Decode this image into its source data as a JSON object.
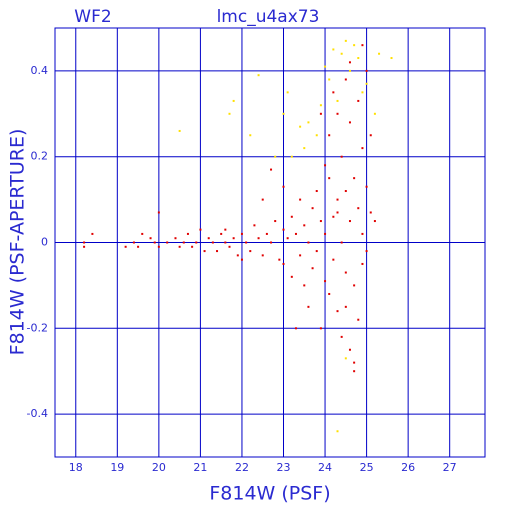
{
  "chart_data": {
    "type": "scatter",
    "title": "lmc_u4ax73",
    "subtitle": "WF2",
    "x_label": "F814W (PSF)",
    "y_label": "F814W (PSF-APERTURE)",
    "xlim": [
      17.5,
      27.85
    ],
    "ylim": [
      -0.5,
      0.5
    ],
    "xticks": [
      18,
      19,
      20,
      21,
      22,
      23,
      24,
      25,
      26,
      27
    ],
    "yticks": [
      -0.4,
      -0.2,
      0,
      0.2,
      0.4
    ],
    "grid": true,
    "axis_color": "#0000c8",
    "series": [
      {
        "color": "#e00000",
        "x": [
          18.2,
          18.4,
          18.2,
          19.2,
          19.4,
          19.5,
          19.6,
          19.8,
          19.9,
          20.0,
          20.0,
          20.2,
          20.4,
          20.5,
          20.6,
          20.7,
          20.8,
          20.9,
          21.0,
          21.1,
          21.2,
          21.3,
          21.4,
          21.5,
          21.6,
          21.7,
          21.8,
          21.9,
          22.0,
          22.1,
          22.2,
          22.3,
          22.4,
          22.5,
          22.6,
          22.7,
          22.8,
          22.9,
          23.0,
          23.0,
          23.1,
          23.2,
          23.2,
          23.3,
          23.4,
          23.4,
          23.5,
          23.5,
          23.6,
          23.6,
          23.7,
          23.7,
          23.8,
          23.8,
          23.9,
          23.9,
          24.0,
          24.0,
          24.0,
          24.1,
          24.1,
          24.1,
          24.2,
          24.2,
          24.3,
          24.3,
          24.3,
          24.4,
          24.4,
          24.4,
          24.5,
          24.5,
          24.5,
          24.6,
          24.6,
          24.6,
          24.7,
          24.7,
          24.7,
          24.8,
          24.8,
          24.8,
          24.9,
          24.9,
          24.9,
          25.0,
          25.0,
          25.0,
          25.1,
          25.1,
          25.2,
          24.2,
          24.6,
          24.9,
          23.3,
          22.5,
          22.7,
          21.6,
          22.0,
          23.0,
          24.5,
          24.7,
          24.3,
          23.9
        ],
        "y": [
          0.0,
          0.02,
          -0.01,
          -0.01,
          0.0,
          -0.01,
          0.02,
          0.01,
          0.0,
          0.07,
          -0.01,
          0.0,
          0.01,
          -0.01,
          0.0,
          0.02,
          -0.01,
          0.0,
          0.03,
          -0.02,
          0.01,
          0.0,
          -0.02,
          0.02,
          0.0,
          -0.01,
          0.01,
          -0.03,
          0.02,
          0.0,
          -0.02,
          0.04,
          0.01,
          -0.03,
          0.02,
          0.0,
          0.05,
          -0.04,
          0.03,
          -0.05,
          0.01,
          0.06,
          -0.08,
          0.02,
          -0.03,
          0.1,
          -0.1,
          0.04,
          0.0,
          -0.15,
          0.08,
          -0.06,
          0.12,
          -0.02,
          0.05,
          -0.2,
          0.18,
          -0.09,
          0.02,
          -0.12,
          0.15,
          0.25,
          -0.04,
          0.06,
          0.3,
          -0.16,
          0.1,
          0.0,
          -0.22,
          0.2,
          0.12,
          -0.07,
          0.38,
          -0.25,
          0.05,
          0.28,
          -0.3,
          0.15,
          -0.1,
          0.08,
          0.33,
          -0.18,
          0.22,
          -0.05,
          0.02,
          0.4,
          0.13,
          -0.02,
          0.25,
          0.07,
          0.05,
          0.35,
          0.42,
          0.46,
          -0.2,
          0.1,
          0.17,
          0.03,
          -0.04,
          0.13,
          -0.15,
          -0.28,
          0.07,
          0.3
        ]
      },
      {
        "color": "#ffe000",
        "x": [
          20.5,
          21.7,
          21.8,
          22.4,
          22.2,
          23.0,
          23.2,
          23.5,
          23.6,
          23.8,
          23.9,
          24.0,
          24.1,
          24.2,
          24.4,
          24.5,
          24.6,
          24.7,
          24.8,
          25.0,
          25.3,
          25.6,
          24.5,
          24.3,
          22.8,
          23.4,
          24.9,
          25.2,
          23.1,
          24.3
        ],
        "y": [
          0.26,
          0.3,
          0.33,
          0.39,
          0.25,
          0.3,
          0.2,
          0.22,
          0.28,
          0.25,
          0.32,
          0.41,
          0.38,
          0.45,
          0.44,
          0.47,
          0.4,
          0.46,
          0.43,
          0.37,
          0.44,
          0.43,
          -0.27,
          -0.44,
          0.2,
          0.27,
          0.35,
          0.3,
          0.35,
          0.33
        ]
      }
    ]
  }
}
